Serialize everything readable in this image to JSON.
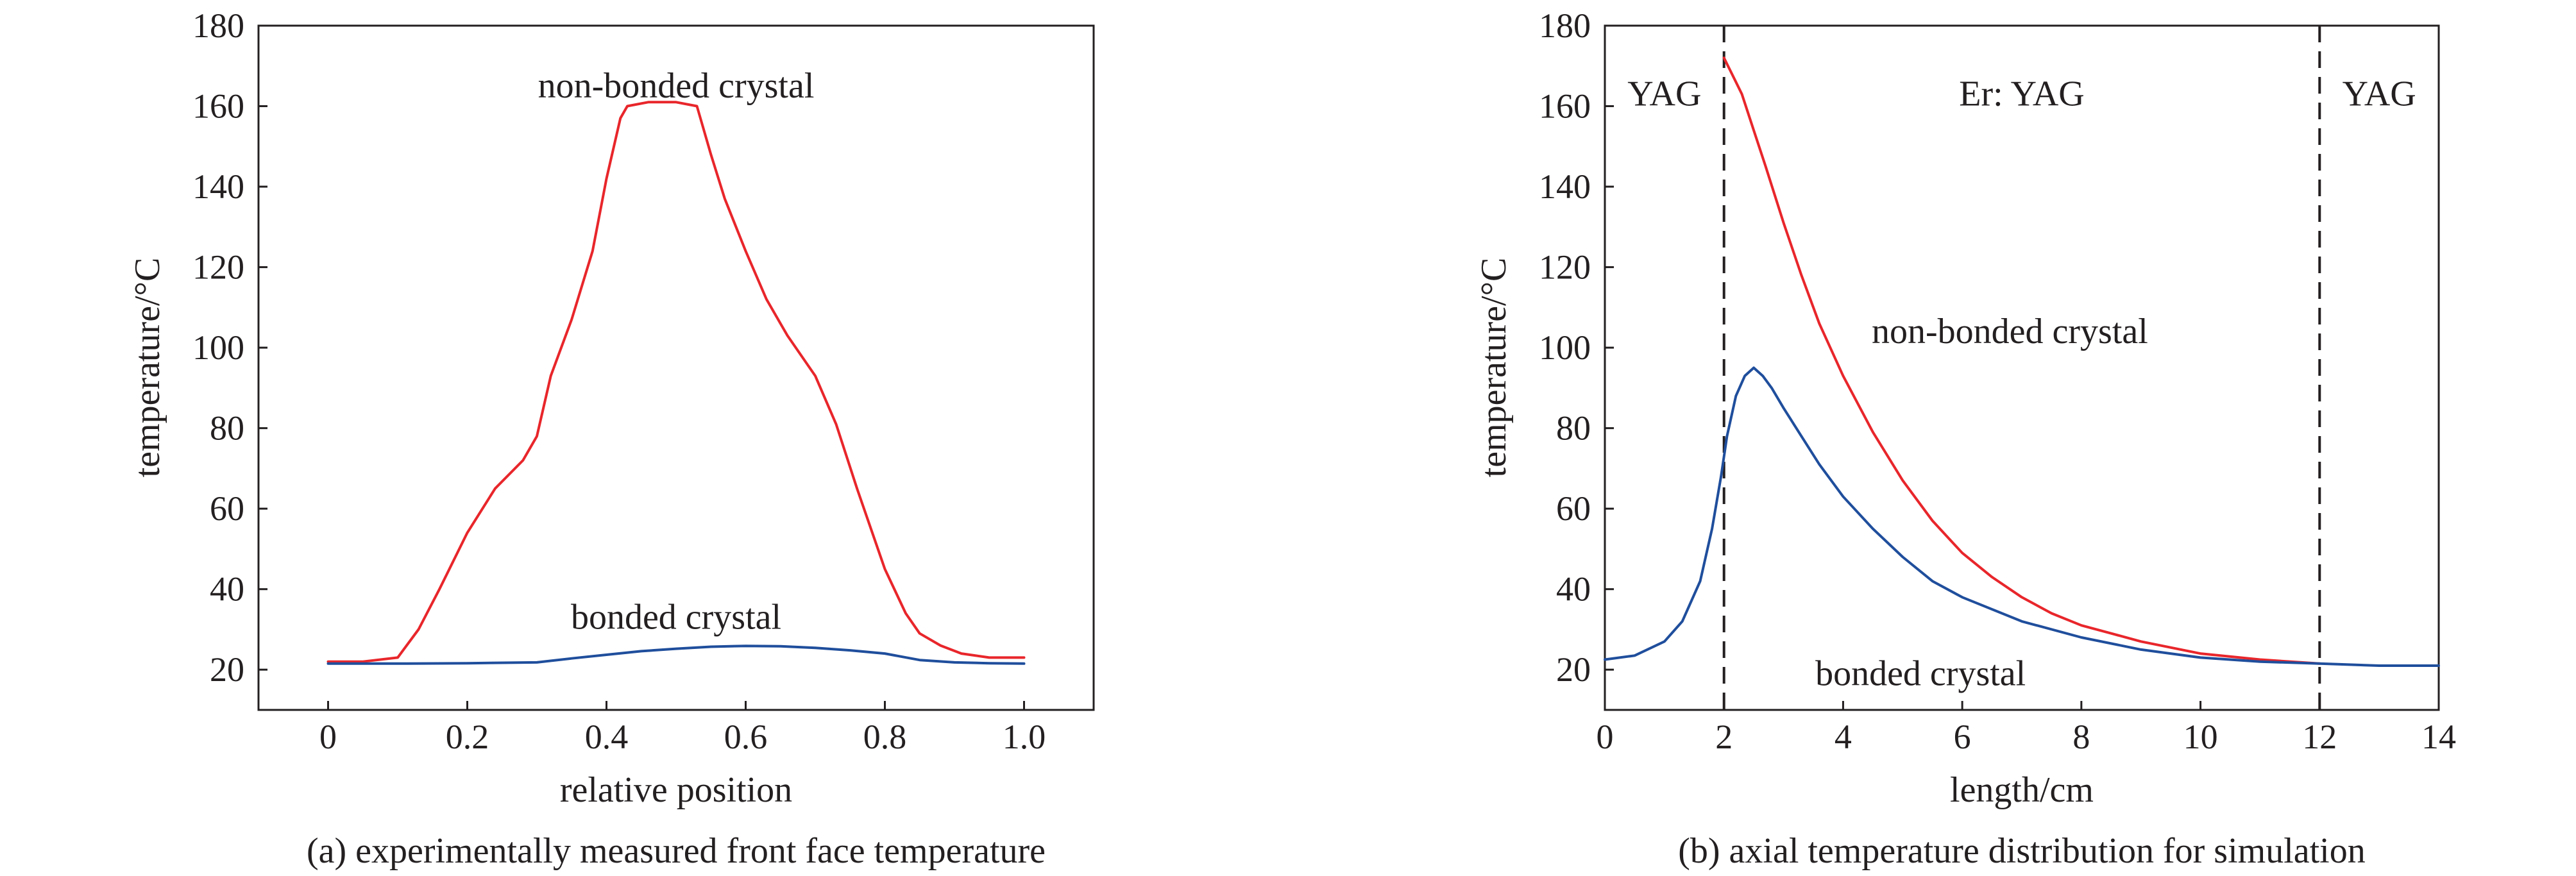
{
  "chart_data": [
    {
      "type": "line",
      "title": "",
      "caption": "(a) experimentally measured front face temperature",
      "xlabel": "relative position",
      "ylabel": "temperature/°C",
      "xlim": [
        -0.1,
        1.1
      ],
      "ylim": [
        10,
        180
      ],
      "x_ticks": [
        0,
        0.2,
        0.4,
        0.6,
        0.8,
        1.0
      ],
      "x_tick_labels": [
        "0",
        "0.2",
        "0.4",
        "0.6",
        "0.8",
        "1.0"
      ],
      "y_ticks": [
        20,
        40,
        60,
        80,
        100,
        120,
        140,
        160,
        180
      ],
      "y_tick_labels": [
        "20",
        "40",
        "60",
        "80",
        "100",
        "120",
        "140",
        "160",
        "180"
      ],
      "grid": false,
      "vlines": [],
      "annotations": [
        {
          "text": "non-bonded crystal",
          "x": 0.5,
          "y": 165
        },
        {
          "text": "bonded crystal",
          "x": 0.5,
          "y": 33
        }
      ],
      "series": [
        {
          "name": "non-bonded crystal",
          "color": "#e8262b",
          "x": [
            0,
            0.05,
            0.1,
            0.13,
            0.16,
            0.2,
            0.24,
            0.28,
            0.3,
            0.32,
            0.35,
            0.38,
            0.4,
            0.42,
            0.43,
            0.46,
            0.5,
            0.53,
            0.55,
            0.57,
            0.6,
            0.63,
            0.66,
            0.7,
            0.73,
            0.76,
            0.8,
            0.83,
            0.85,
            0.88,
            0.91,
            0.95,
            1.0
          ],
          "y": [
            22,
            22,
            23,
            30,
            40,
            54,
            65,
            72,
            78,
            93,
            107,
            124,
            142,
            157,
            160,
            161,
            161,
            160,
            148,
            137,
            124,
            112,
            103,
            93,
            81,
            65,
            45,
            34,
            29,
            26,
            24,
            23,
            23
          ]
        },
        {
          "name": "bonded crystal",
          "color": "#1f4e9c",
          "x": [
            0,
            0.1,
            0.2,
            0.3,
            0.35,
            0.4,
            0.45,
            0.5,
            0.55,
            0.6,
            0.65,
            0.7,
            0.75,
            0.8,
            0.85,
            0.9,
            0.95,
            1.0
          ],
          "y": [
            21.5,
            21.5,
            21.6,
            21.8,
            22.8,
            23.7,
            24.6,
            25.2,
            25.7,
            25.9,
            25.8,
            25.4,
            24.8,
            24.0,
            22.4,
            21.8,
            21.6,
            21.5
          ]
        }
      ]
    },
    {
      "type": "line",
      "title": "",
      "caption": "(b) axial temperature distribution for simulation",
      "xlabel": "length/cm",
      "ylabel": "temperature/°C",
      "xlim": [
        0,
        14
      ],
      "ylim": [
        10,
        180
      ],
      "x_ticks": [
        0,
        2,
        4,
        6,
        8,
        10,
        12,
        14
      ],
      "x_tick_labels": [
        "0",
        "2",
        "4",
        "6",
        "8",
        "10",
        "12",
        "14"
      ],
      "y_ticks": [
        20,
        40,
        60,
        80,
        100,
        120,
        140,
        160,
        180
      ],
      "y_tick_labels": [
        "20",
        "40",
        "60",
        "80",
        "100",
        "120",
        "140",
        "160",
        "180"
      ],
      "grid": false,
      "vlines": [
        2,
        12
      ],
      "annotations": [
        {
          "text": "YAG",
          "x": 1.0,
          "y": 163
        },
        {
          "text": "Er: YAG",
          "x": 7.0,
          "y": 163
        },
        {
          "text": "YAG",
          "x": 13.0,
          "y": 163
        },
        {
          "text": "non-bonded crystal",
          "x": 6.8,
          "y": 104
        },
        {
          "text": "bonded crystal",
          "x": 5.3,
          "y": 19
        }
      ],
      "series": [
        {
          "name": "non-bonded crystal",
          "color": "#e8262b",
          "x": [
            2.0,
            2.1,
            2.3,
            2.5,
            2.7,
            3.0,
            3.3,
            3.6,
            4.0,
            4.5,
            5.0,
            5.5,
            6.0,
            6.5,
            7.0,
            7.5,
            8.0,
            8.5,
            9.0,
            10.0,
            11.0,
            12.0
          ],
          "y": [
            172,
            169,
            163,
            154,
            145,
            131,
            118,
            106,
            93,
            79,
            67,
            57,
            49,
            43,
            38,
            34,
            31,
            29,
            27,
            24,
            22.5,
            21.5
          ]
        },
        {
          "name": "bonded crystal",
          "color": "#1f4e9c",
          "x": [
            0,
            0.5,
            1.0,
            1.3,
            1.6,
            1.8,
            1.95,
            2.05,
            2.2,
            2.35,
            2.5,
            2.65,
            2.8,
            3.0,
            3.3,
            3.6,
            4.0,
            4.5,
            5.0,
            5.5,
            6.0,
            7.0,
            8.0,
            9.0,
            10.0,
            11.0,
            12.0,
            13.0,
            14.0
          ],
          "y": [
            22.5,
            23.5,
            27,
            32,
            42,
            55,
            68,
            78,
            88,
            93,
            95,
            93,
            90,
            85,
            78,
            71,
            63,
            55,
            48,
            42,
            38,
            32,
            28,
            25,
            23,
            22,
            21.5,
            21,
            21
          ]
        }
      ]
    }
  ]
}
